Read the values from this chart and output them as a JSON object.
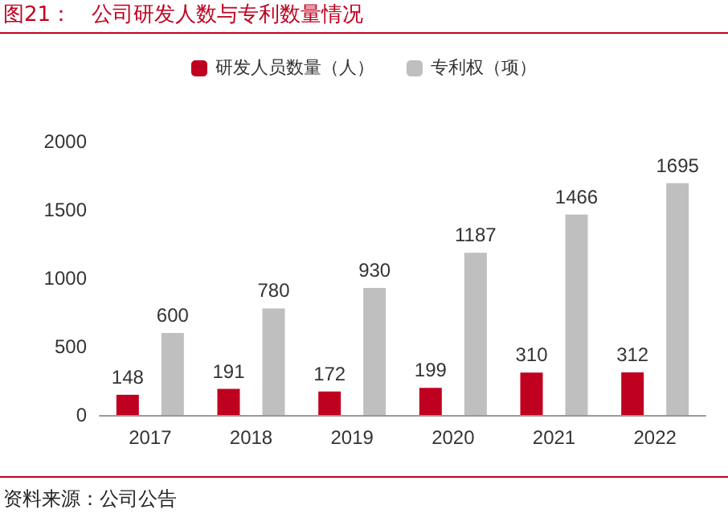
{
  "chart_data": {
    "type": "bar",
    "title": "图21：   公司研发人数与专利数量情况",
    "categories": [
      "2017",
      "2018",
      "2019",
      "2020",
      "2021",
      "2022"
    ],
    "series": [
      {
        "name": "研发人员数量（人）",
        "color": "#c00020",
        "values": [
          148,
          191,
          172,
          199,
          310,
          312
        ]
      },
      {
        "name": "专利权（项）",
        "color": "#bfbfbf",
        "values": [
          600,
          780,
          930,
          1187,
          1466,
          1695
        ]
      }
    ],
    "ylim": [
      0,
      2000
    ],
    "yticks": [
      0,
      500,
      1000,
      1500,
      2000
    ],
    "grid": false,
    "legend": "top",
    "data_labels": true,
    "annotations": [
      "资料来源：公司公告"
    ]
  }
}
